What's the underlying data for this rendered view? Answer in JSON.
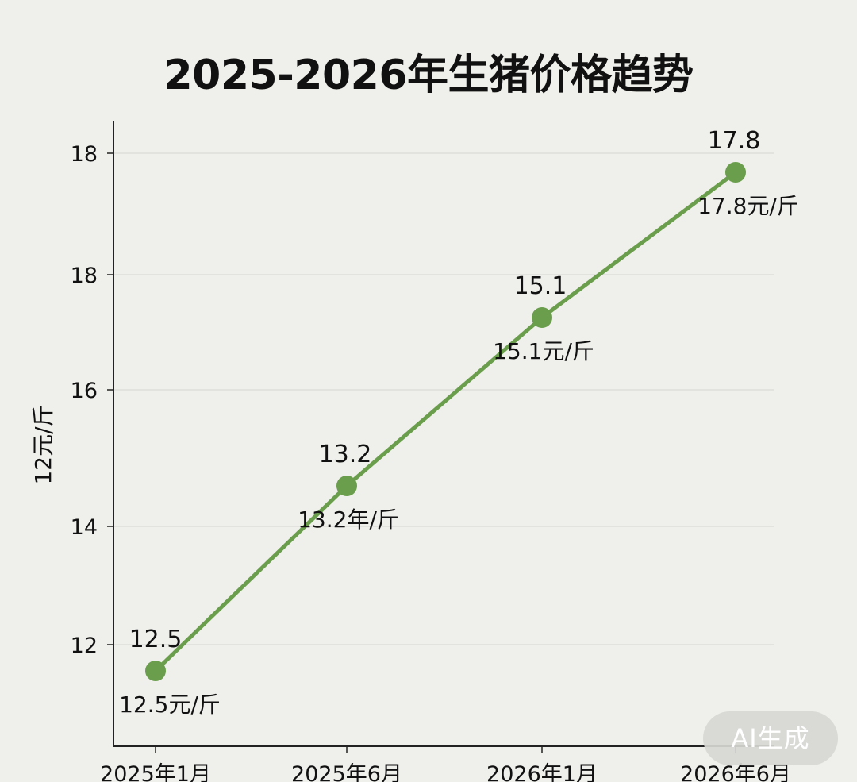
{
  "chart_data": {
    "type": "line",
    "title": "2025-2026年生猪价格趋势",
    "ylabel": "12元/斤",
    "xlabel": "",
    "categories": [
      "2025年1月",
      "2025年6月",
      "2026年1月",
      "2026年6月"
    ],
    "values": [
      12.5,
      13.2,
      15.1,
      17.8
    ],
    "value_labels": [
      "12.5",
      "13.2",
      "15.1",
      "17.8"
    ],
    "point_labels": [
      "12.5元/斤",
      "13.2年/斤",
      "15.1元/斤",
      "17.8元/斤"
    ],
    "y_ticks": [
      "12",
      "14",
      "16",
      "18",
      "18"
    ],
    "grid": true,
    "line_color": "#6a9e4c",
    "marker_color": "#6a9e4c"
  },
  "watermark": "AI生成"
}
